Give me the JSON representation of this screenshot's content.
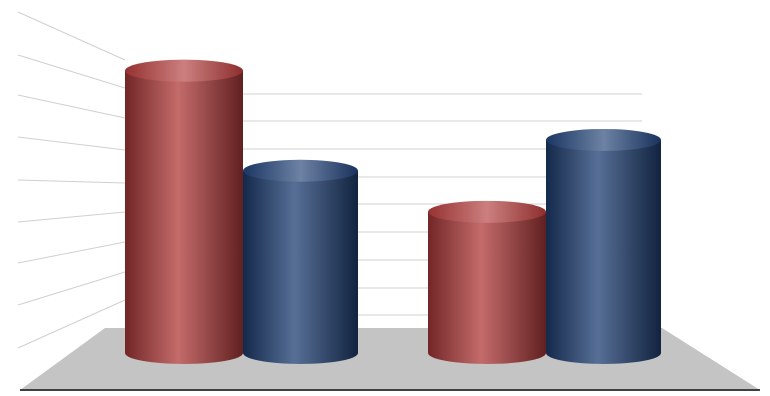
{
  "chart_data": {
    "type": "bar",
    "style": "3d-cylinder",
    "categories": [
      "",
      ""
    ],
    "series": [
      {
        "color": "#b03a3a",
        "values": [
          11,
          5.5
        ]
      },
      {
        "color": "#1f3f73",
        "values": [
          7.1,
          8.3
        ]
      }
    ],
    "ylim": [
      0,
      12
    ],
    "grid": true,
    "title": "",
    "xlabel": "",
    "ylabel": "",
    "legend": "none"
  },
  "colors": {
    "floor": "#c4c4c4",
    "gridline": "#d0d0d0",
    "baseline": "#404040"
  }
}
